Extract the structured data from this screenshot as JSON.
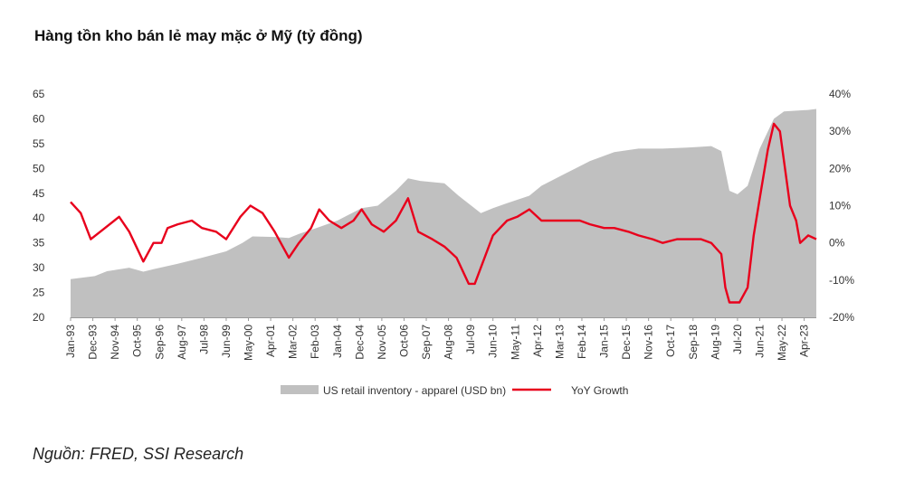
{
  "title": "Hàng tồn kho bán lẻ may mặc ở Mỹ (tỷ đồng)",
  "source": "Nguồn: FRED, SSI Research",
  "chart_data": {
    "type": "area+line",
    "title": "Hàng tồn kho bán lẻ may mặc ở Mỹ (tỷ đồng)",
    "x_range": [
      "1993-01",
      "2023-10"
    ],
    "x_tick_labels": [
      "Jan-93",
      "Dec-93",
      "Nov-94",
      "Oct-95",
      "Sep-96",
      "Aug-97",
      "Jul-98",
      "Jun-99",
      "May-00",
      "Apr-01",
      "Mar-02",
      "Feb-03",
      "Jan-04",
      "Dec-04",
      "Nov-05",
      "Oct-06",
      "Sep-07",
      "Aug-08",
      "Jul-09",
      "Jun-10",
      "May-11",
      "Apr-12",
      "Mar-13",
      "Feb-14",
      "Jan-15",
      "Dec-15",
      "Nov-16",
      "Oct-17",
      "Sep-18",
      "Aug-19",
      "Jul-20",
      "Jun-21",
      "May-22",
      "Apr-23"
    ],
    "y_left": {
      "ylim": [
        20,
        65
      ],
      "ticks": [
        20,
        25,
        30,
        35,
        40,
        45,
        50,
        55,
        60,
        65
      ]
    },
    "y_right": {
      "ylim": [
        -20,
        40
      ],
      "ticks": [
        "-20%",
        "-10%",
        "0%",
        "10%",
        "20%",
        "30%",
        "40%"
      ]
    },
    "legend": {
      "position": "bottom-center"
    },
    "colors": {
      "area": "#c0c0c0",
      "line": "#e8001c"
    },
    "series": [
      {
        "name": "US retail inventory - apparel (USD bn)",
        "type": "area",
        "axis": "left",
        "points": [
          [
            "1993-01",
            27.7
          ],
          [
            "1994-01",
            28.3
          ],
          [
            "1994-07",
            29.3
          ],
          [
            "1995-06",
            30.0
          ],
          [
            "1996-01",
            29.2
          ],
          [
            "1996-06",
            29.7
          ],
          [
            "1997-06",
            30.8
          ],
          [
            "1998-06",
            32.0
          ],
          [
            "1999-06",
            33.3
          ],
          [
            "2000-02",
            35.0
          ],
          [
            "2000-07",
            36.3
          ],
          [
            "2001-06",
            36.2
          ],
          [
            "2002-01",
            36.0
          ],
          [
            "2002-06",
            36.8
          ],
          [
            "2003-02",
            37.9
          ],
          [
            "2004-01",
            39.5
          ],
          [
            "2005-01",
            42.0
          ],
          [
            "2005-09",
            42.5
          ],
          [
            "2006-06",
            45.5
          ],
          [
            "2006-12",
            48.0
          ],
          [
            "2007-06",
            47.5
          ],
          [
            "2008-06",
            47.0
          ],
          [
            "2009-01",
            44.5
          ],
          [
            "2009-12",
            41.0
          ],
          [
            "2010-06",
            42.0
          ],
          [
            "2011-01",
            43.0
          ],
          [
            "2011-12",
            44.5
          ],
          [
            "2012-06",
            46.5
          ],
          [
            "2013-06",
            49.0
          ],
          [
            "2014-06",
            51.5
          ],
          [
            "2015-06",
            53.3
          ],
          [
            "2016-06",
            54.0
          ],
          [
            "2017-06",
            54.0
          ],
          [
            "2018-06",
            54.2
          ],
          [
            "2019-06",
            54.5
          ],
          [
            "2019-11",
            53.5
          ],
          [
            "2020-03",
            45.5
          ],
          [
            "2020-07",
            44.8
          ],
          [
            "2020-12",
            46.5
          ],
          [
            "2021-06",
            54.0
          ],
          [
            "2022-01",
            60.0
          ],
          [
            "2022-06",
            61.5
          ],
          [
            "2023-06",
            61.8
          ],
          [
            "2023-10",
            62.0
          ]
        ]
      },
      {
        "name": "YoY Growth",
        "type": "line",
        "axis": "right",
        "unit": "%",
        "points": [
          [
            "1993-01",
            11
          ],
          [
            "1993-06",
            8
          ],
          [
            "1993-11",
            1
          ],
          [
            "1994-06",
            4
          ],
          [
            "1995-01",
            7
          ],
          [
            "1995-06",
            3
          ],
          [
            "1996-01",
            -5
          ],
          [
            "1996-06",
            0
          ],
          [
            "1996-10",
            0
          ],
          [
            "1997-01",
            4
          ],
          [
            "1997-06",
            5
          ],
          [
            "1998-01",
            6
          ],
          [
            "1998-06",
            4
          ],
          [
            "1999-01",
            3
          ],
          [
            "1999-06",
            1
          ],
          [
            "2000-01",
            7
          ],
          [
            "2000-06",
            10
          ],
          [
            "2000-12",
            8
          ],
          [
            "2001-06",
            3
          ],
          [
            "2002-01",
            -4
          ],
          [
            "2002-06",
            0
          ],
          [
            "2002-12",
            4
          ],
          [
            "2003-04",
            9
          ],
          [
            "2003-09",
            6
          ],
          [
            "2004-03",
            4
          ],
          [
            "2004-09",
            6
          ],
          [
            "2005-01",
            9
          ],
          [
            "2005-06",
            5
          ],
          [
            "2005-12",
            3
          ],
          [
            "2006-06",
            6
          ],
          [
            "2006-12",
            12
          ],
          [
            "2007-05",
            3
          ],
          [
            "2007-12",
            1
          ],
          [
            "2008-06",
            -1
          ],
          [
            "2008-12",
            -4
          ],
          [
            "2009-06",
            -11
          ],
          [
            "2009-09",
            -11
          ],
          [
            "2010-06",
            2
          ],
          [
            "2011-01",
            6
          ],
          [
            "2011-06",
            7
          ],
          [
            "2011-12",
            9
          ],
          [
            "2012-06",
            6
          ],
          [
            "2013-01",
            6
          ],
          [
            "2013-06",
            6
          ],
          [
            "2014-01",
            6
          ],
          [
            "2014-06",
            5
          ],
          [
            "2015-01",
            4
          ],
          [
            "2015-06",
            4
          ],
          [
            "2016-01",
            3
          ],
          [
            "2016-06",
            2
          ],
          [
            "2017-01",
            1
          ],
          [
            "2017-06",
            0
          ],
          [
            "2018-01",
            1
          ],
          [
            "2018-06",
            1
          ],
          [
            "2019-01",
            1
          ],
          [
            "2019-06",
            0
          ],
          [
            "2019-11",
            -3
          ],
          [
            "2020-01",
            -12
          ],
          [
            "2020-03",
            -16
          ],
          [
            "2020-08",
            -16
          ],
          [
            "2020-12",
            -12
          ],
          [
            "2021-03",
            2
          ],
          [
            "2021-06",
            12
          ],
          [
            "2021-10",
            25
          ],
          [
            "2022-01",
            32
          ],
          [
            "2022-04",
            30
          ],
          [
            "2022-09",
            10
          ],
          [
            "2022-12",
            6
          ],
          [
            "2023-02",
            0
          ],
          [
            "2023-06",
            2
          ],
          [
            "2023-10",
            1
          ]
        ]
      }
    ]
  }
}
